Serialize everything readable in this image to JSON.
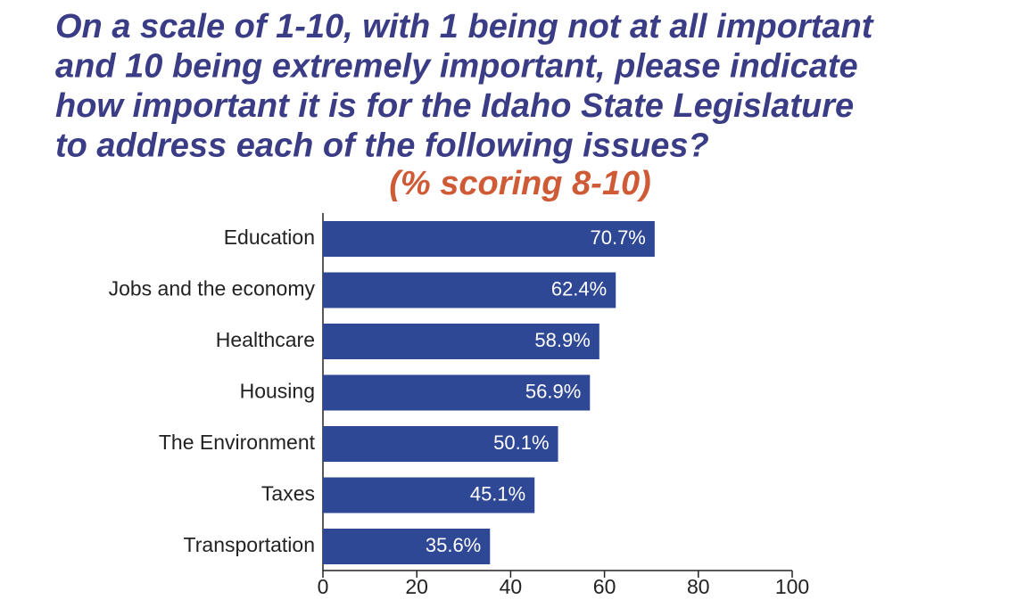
{
  "chart_data": {
    "type": "hbar",
    "title": [
      "On a scale of 1-10, with 1 being not at all important",
      "and 10 being extremely important, please indicate",
      "how important it is for the Idaho State Legislature",
      "to address each of the following issues?"
    ],
    "subtitle": "(% scoring 8-10)",
    "categories": [
      "Education",
      "Jobs and the economy",
      "Healthcare",
      "Housing",
      "The Environment",
      "Taxes",
      "Transportation"
    ],
    "values": [
      70.7,
      62.4,
      58.9,
      56.9,
      50.1,
      45.1,
      35.6
    ],
    "value_labels": [
      "70.7%",
      "62.4%",
      "58.9%",
      "56.9%",
      "50.1%",
      "45.1%",
      "35.6%"
    ],
    "color": "#2f4896",
    "xlim": [
      0,
      100
    ],
    "xticks": [
      0,
      20,
      40,
      60,
      80,
      100
    ]
  }
}
